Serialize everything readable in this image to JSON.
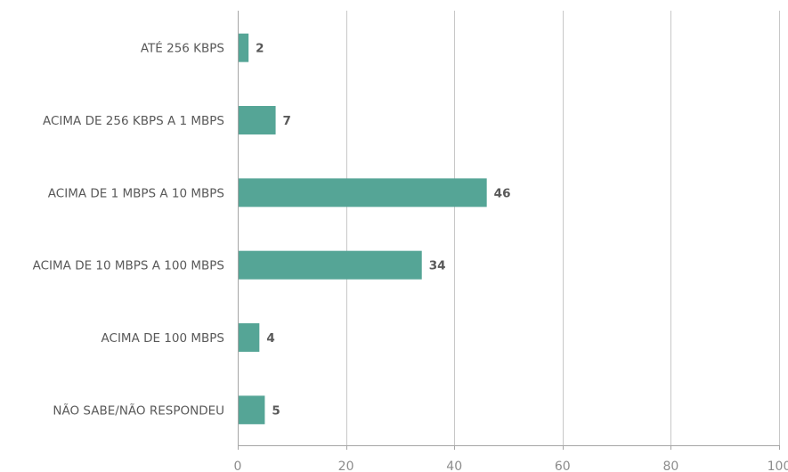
{
  "chart_data": {
    "type": "bar",
    "orientation": "horizontal",
    "categories": [
      "ATÉ 256 KBPS",
      "ACIMA DE 256 KBPS A 1 MBPS",
      "ACIMA DE 1 MBPS A 10 MBPS",
      "ACIMA DE 10 MBPS A 100 MBPS",
      "ACIMA DE 100 MBPS",
      "NÃO SABE/NÃO RESPONDEU"
    ],
    "values": [
      2,
      7,
      46,
      34,
      4,
      5
    ],
    "data_labels": [
      "2",
      "7",
      "46",
      "34",
      "4",
      "5"
    ],
    "xlim": [
      0,
      100
    ],
    "x_ticks": [
      0,
      20,
      40,
      60,
      80,
      100
    ],
    "x_tick_labels": [
      "0",
      "20",
      "40",
      "60",
      "80",
      "100"
    ],
    "grid": "vertical",
    "legend": "none",
    "bar_color": "#55a596"
  }
}
